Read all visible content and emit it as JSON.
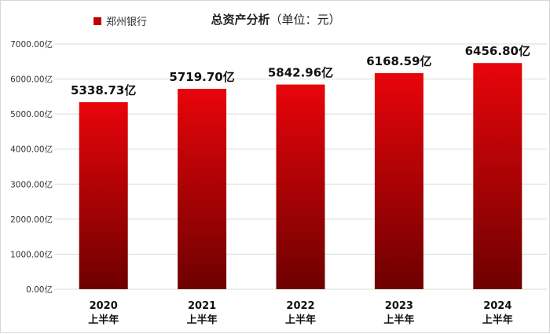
{
  "chart_data": {
    "type": "bar",
    "title": "总资产分析",
    "subtitle": "（单位：元）",
    "xlabel": "",
    "ylabel": "",
    "categories": [
      [
        "2020",
        "上半年"
      ],
      [
        "2021",
        "上半年"
      ],
      [
        "2022",
        "上半年"
      ],
      [
        "2023",
        "上半年"
      ],
      [
        "2024",
        "上半年"
      ]
    ],
    "series": [
      {
        "name": "郑州银行",
        "values": [
          5338.73,
          5719.7,
          5842.96,
          6168.59,
          6456.8
        ],
        "data_labels": [
          "5338.73亿",
          "5719.70亿",
          "5842.96亿",
          "6168.59亿",
          "6456.80亿"
        ]
      }
    ],
    "ylim": [
      0,
      7000
    ],
    "y_ticks": [
      0,
      1000,
      2000,
      3000,
      4000,
      5000,
      6000,
      7000
    ],
    "y_tick_labels": [
      "0.00亿",
      "1000.00亿",
      "2000.00亿",
      "3000.00亿",
      "4000.00亿",
      "5000.00亿",
      "6000.00亿",
      "7000.00亿"
    ],
    "grid": true,
    "legend_position": "top-left",
    "colors": {
      "bar_top": "#e8050a",
      "bar_bottom": "#6e0000",
      "legend": "#c00000",
      "grid": "#cfe3d2"
    }
  }
}
